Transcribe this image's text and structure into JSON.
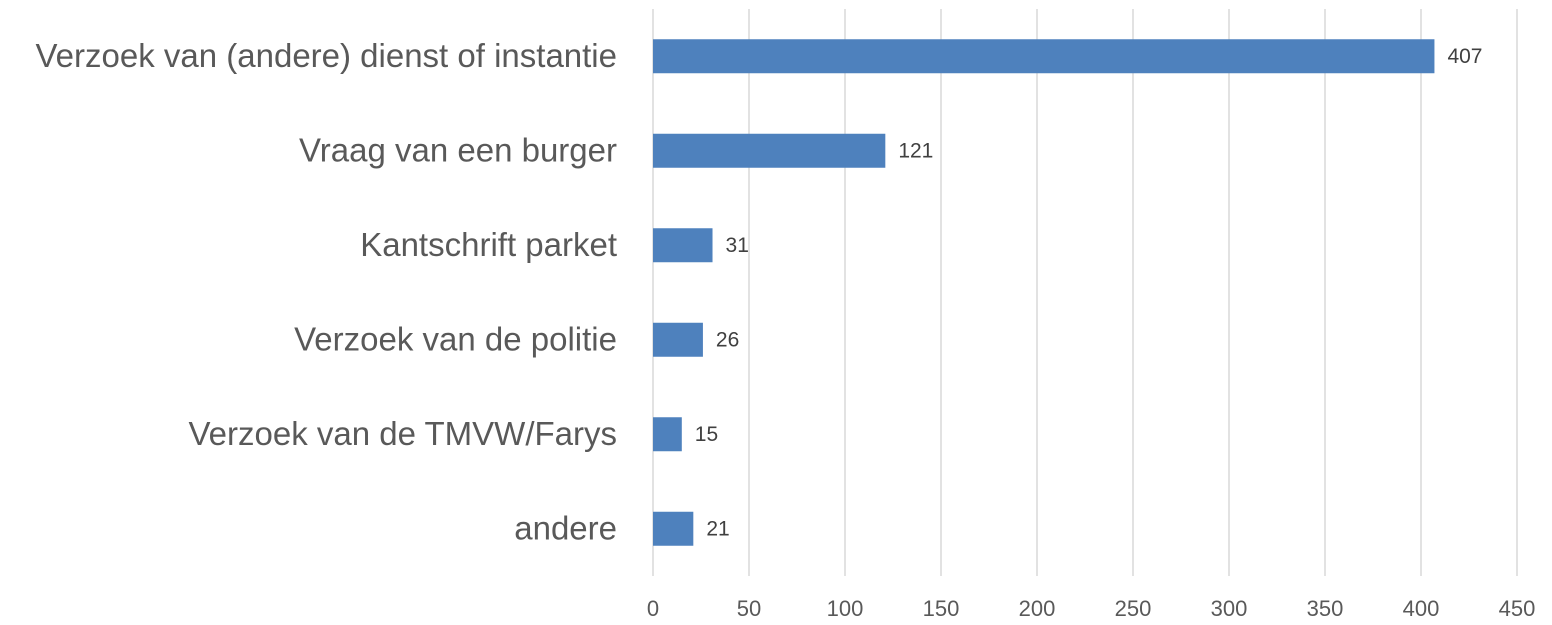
{
  "chart_data": {
    "type": "bar",
    "orientation": "horizontal",
    "categories": [
      "Verzoek van (andere) dienst of instantie",
      "Vraag van een burger",
      "Kantschrift parket",
      "Verzoek van de politie",
      "Verzoek van de TMVW/Farys",
      "andere"
    ],
    "values": [
      407,
      121,
      31,
      26,
      15,
      21
    ],
    "color": "#4e81bd",
    "xlim": [
      0,
      450
    ],
    "xticks": [
      0,
      50,
      100,
      150,
      200,
      250,
      300,
      350,
      400,
      450
    ],
    "grid": true
  }
}
